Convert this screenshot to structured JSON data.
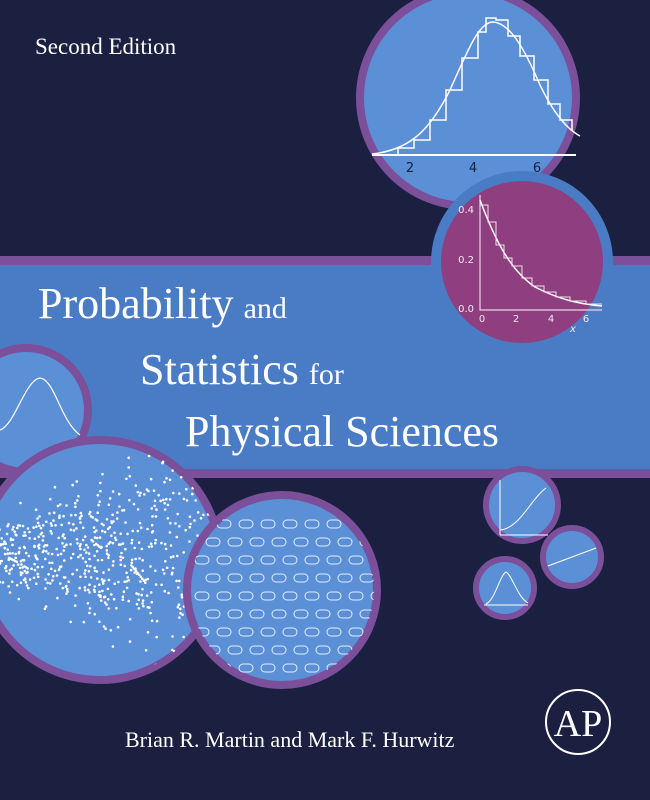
{
  "edition": "Second Edition",
  "title": {
    "line1": "Probability",
    "conj1": "and",
    "line2": "Statistics",
    "conj2": "for",
    "line3": "Physical Sciences"
  },
  "authors": "Brian R. Martin and Mark F. Hurwitz",
  "publisher_logo": "AP",
  "figures": {
    "histogram": {
      "x_ticks": [
        "2",
        "4",
        "6"
      ]
    },
    "decay": {
      "y_ticks": [
        "0.4",
        "0.2",
        "0.0"
      ],
      "x_ticks": [
        "0",
        "2",
        "4",
        "6"
      ],
      "x_label": "x"
    }
  }
}
